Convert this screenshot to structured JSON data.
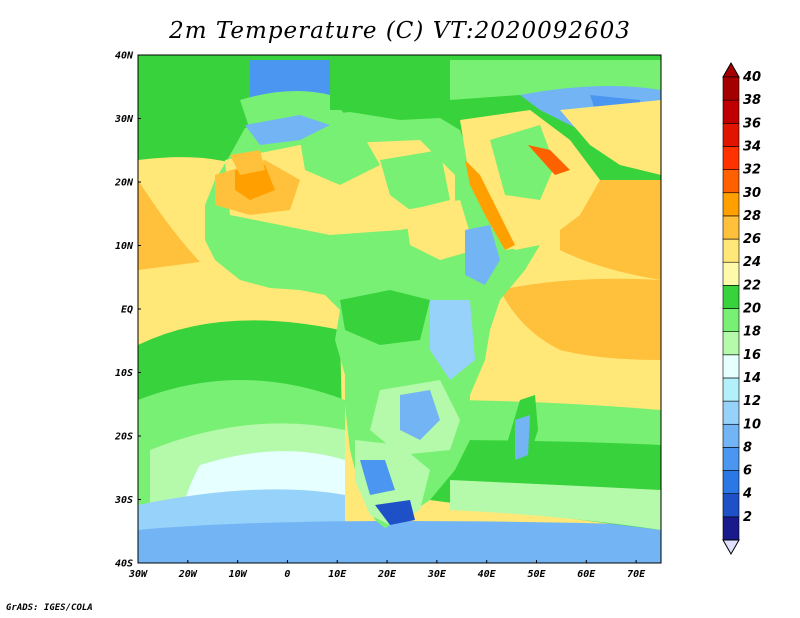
{
  "title": "2m Temperature (C) VT:2020092603",
  "credit": "GrADS: IGES/COLA",
  "map": {
    "lat_labels": [
      {
        "lat": 40,
        "label": "40N"
      },
      {
        "lat": 30,
        "label": "30N"
      },
      {
        "lat": 20,
        "label": "20N"
      },
      {
        "lat": 10,
        "label": "10N"
      },
      {
        "lat": 0,
        "label": "EQ"
      },
      {
        "lat": -10,
        "label": "10S"
      },
      {
        "lat": -20,
        "label": "20S"
      },
      {
        "lat": -30,
        "label": "30S"
      },
      {
        "lat": -40,
        "label": "40S"
      }
    ],
    "lon_labels": [
      {
        "lon": -30,
        "label": "30W"
      },
      {
        "lon": -20,
        "label": "20W"
      },
      {
        "lon": -10,
        "label": "10W"
      },
      {
        "lon": 0,
        "label": "0"
      },
      {
        "lon": 10,
        "label": "10E"
      },
      {
        "lon": 20,
        "label": "20E"
      },
      {
        "lon": 30,
        "label": "30E"
      },
      {
        "lon": 40,
        "label": "40E"
      },
      {
        "lon": 50,
        "label": "50E"
      },
      {
        "lon": 60,
        "label": "60E"
      },
      {
        "lon": 70,
        "label": "70E"
      }
    ]
  },
  "colorbar": {
    "levels": [
      "2",
      "4",
      "6",
      "8",
      "10",
      "12",
      "14",
      "16",
      "18",
      "20",
      "22",
      "24",
      "26",
      "28",
      "30",
      "32",
      "34",
      "36",
      "38",
      "40"
    ],
    "colors": [
      "#1a1a8c",
      "#1e50c8",
      "#2a78e6",
      "#4b96f0",
      "#73b4f5",
      "#96d2fa",
      "#b4f0fa",
      "#e6ffff",
      "#b4faaa",
      "#78f073",
      "#37d23c",
      "#fffaaa",
      "#ffe878",
      "#ffc03c",
      "#ffa000",
      "#ff6000",
      "#ff3200",
      "#e11400",
      "#c00000",
      "#a50000"
    ],
    "under_color": "#e1e1ff"
  }
}
